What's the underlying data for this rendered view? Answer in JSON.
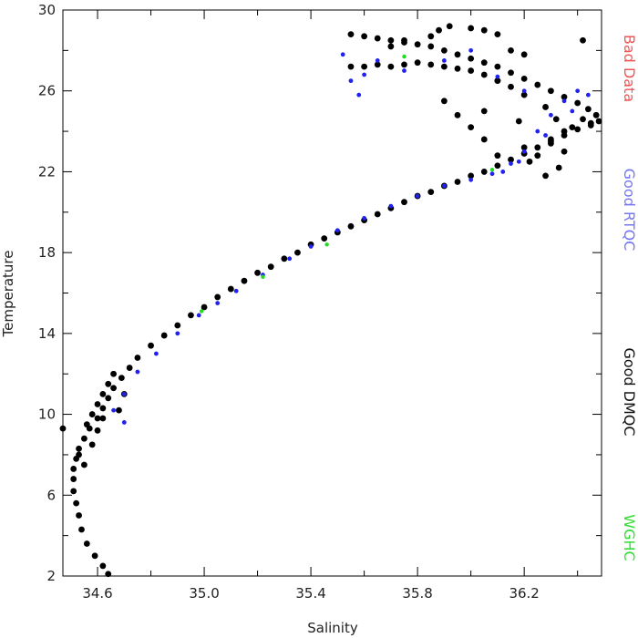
{
  "chart_data": {
    "type": "scatter",
    "title": "",
    "xlabel": "Salinity",
    "ylabel": "Temperature",
    "xlim": [
      34.47,
      36.49
    ],
    "ylim": [
      2,
      30
    ],
    "xticks": [
      34.6,
      35.0,
      35.4,
      35.8,
      36.2
    ],
    "xtick_labels": [
      "34.6",
      "35.0",
      "35.4",
      "35.8",
      "36.2"
    ],
    "yticks": [
      2,
      6,
      10,
      14,
      18,
      22,
      26,
      30
    ],
    "ytick_labels": [
      "2",
      "6",
      "10",
      "14",
      "18",
      "22",
      "26",
      "30"
    ],
    "grid": false,
    "legend_position": "right-side, vertical text",
    "legend": [
      {
        "label": "Bad Data",
        "color": "#ee5555"
      },
      {
        "label": "Good RTQC",
        "color": "#7777ee"
      },
      {
        "label": "Good DMQC",
        "color": "#111111"
      },
      {
        "label": "WGHC",
        "color": "#33dd33"
      }
    ],
    "series": [
      {
        "legend_ref": 2,
        "color": "#000000",
        "x": [
          34.64,
          34.62,
          34.59,
          34.56,
          34.54,
          34.53,
          34.52,
          34.51,
          34.51,
          34.51,
          34.52,
          34.53,
          34.55,
          34.57,
          34.6,
          34.62,
          34.64,
          34.66,
          34.69,
          34.72,
          34.75,
          34.8,
          34.85,
          34.9,
          34.95,
          35.0,
          35.05,
          35.1,
          35.15,
          35.2,
          35.25,
          35.3,
          35.35,
          35.4,
          35.45,
          35.5,
          35.55,
          35.6,
          35.65,
          35.7,
          35.75,
          35.8,
          35.85,
          35.9,
          35.95,
          36.0,
          36.05,
          36.1,
          36.15,
          36.2,
          36.25,
          36.3,
          36.35,
          36.4,
          36.45,
          36.48,
          36.47,
          36.44,
          36.4,
          36.35,
          36.3,
          36.25,
          36.2,
          36.15,
          36.1,
          36.05,
          36.0,
          35.95,
          35.9,
          35.85,
          35.8,
          35.75,
          35.7,
          35.65,
          35.6,
          35.55,
          35.55,
          35.6,
          35.65,
          35.7,
          35.75,
          35.8,
          35.85,
          35.9,
          35.95,
          36.0,
          36.05,
          36.1,
          36.15,
          36.2,
          36.28,
          36.32,
          36.35,
          36.3,
          36.2,
          36.1,
          35.9,
          35.95,
          36.0,
          36.05,
          35.88,
          35.92,
          36.05,
          36.1,
          36.0,
          35.85,
          35.75,
          35.7,
          36.22,
          36.25,
          36.3,
          36.38,
          36.42,
          36.45,
          36.35,
          34.56,
          34.58,
          34.6,
          34.62,
          34.64,
          34.66,
          34.6,
          34.62,
          34.58,
          34.55,
          34.53,
          34.47,
          34.7,
          34.68,
          36.42,
          36.2,
          36.15,
          36.1,
          36.05,
          36.18,
          36.28,
          36.33
        ],
        "y": [
          2.1,
          2.5,
          3.0,
          3.6,
          4.3,
          5.0,
          5.6,
          6.2,
          6.8,
          7.3,
          7.8,
          8.3,
          8.8,
          9.3,
          9.8,
          10.3,
          10.8,
          11.3,
          11.8,
          12.3,
          12.8,
          13.4,
          13.9,
          14.4,
          14.9,
          15.3,
          15.8,
          16.2,
          16.6,
          17.0,
          17.3,
          17.7,
          18.0,
          18.4,
          18.7,
          19.0,
          19.3,
          19.6,
          19.9,
          20.2,
          20.5,
          20.8,
          21.0,
          21.3,
          21.5,
          21.8,
          22.0,
          22.3,
          22.6,
          22.9,
          23.2,
          23.5,
          23.8,
          24.1,
          24.3,
          24.5,
          24.8,
          25.1,
          25.4,
          25.7,
          26.0,
          26.3,
          26.6,
          26.9,
          27.2,
          27.4,
          27.6,
          27.8,
          28.0,
          28.2,
          28.3,
          28.4,
          28.5,
          28.6,
          28.7,
          28.8,
          27.2,
          27.2,
          27.3,
          27.2,
          27.3,
          27.4,
          27.3,
          27.2,
          27.1,
          27.0,
          26.8,
          26.5,
          26.2,
          25.8,
          25.2,
          24.6,
          24.0,
          23.6,
          23.2,
          22.8,
          25.5,
          24.8,
          24.2,
          23.6,
          29.0,
          29.2,
          29.0,
          28.8,
          29.1,
          28.7,
          28.5,
          28.2,
          22.5,
          22.8,
          23.4,
          24.2,
          24.6,
          24.4,
          23.0,
          9.5,
          10.0,
          10.5,
          11.0,
          11.5,
          12.0,
          9.2,
          9.8,
          8.5,
          7.5,
          8.0,
          9.3,
          11.0,
          10.2,
          28.5,
          27.8,
          28.0,
          26.5,
          25.0,
          24.5,
          21.8,
          22.2
        ]
      },
      {
        "legend_ref": 1,
        "color": "#2222ee",
        "x": [
          34.7,
          34.75,
          34.82,
          34.9,
          34.98,
          35.05,
          35.12,
          35.22,
          35.32,
          35.4,
          35.5,
          35.6,
          35.7,
          35.8,
          35.9,
          36.0,
          36.08,
          36.15,
          36.2,
          36.25,
          36.3,
          36.35,
          36.4,
          35.52,
          35.55,
          35.6,
          35.58,
          35.65,
          35.75,
          35.9,
          36.0,
          36.1,
          36.2,
          34.66,
          34.7,
          36.12,
          36.18,
          36.28,
          36.38,
          36.44
        ],
        "y": [
          11.0,
          12.1,
          13.0,
          14.0,
          14.9,
          15.5,
          16.1,
          16.9,
          17.7,
          18.3,
          19.1,
          19.7,
          20.3,
          20.8,
          21.3,
          21.6,
          21.9,
          22.4,
          23.0,
          24.0,
          24.8,
          25.5,
          26.0,
          27.8,
          26.5,
          26.8,
          25.8,
          27.5,
          27.0,
          27.5,
          28.0,
          26.7,
          26.0,
          10.2,
          9.6,
          22.0,
          22.5,
          23.8,
          25.0,
          25.8
        ]
      },
      {
        "legend_ref": 3,
        "color": "#22dd22",
        "x": [
          35.46,
          35.22,
          34.99,
          36.08,
          35.75
        ],
        "y": [
          18.4,
          16.8,
          15.1,
          22.1,
          27.7
        ]
      }
    ]
  }
}
